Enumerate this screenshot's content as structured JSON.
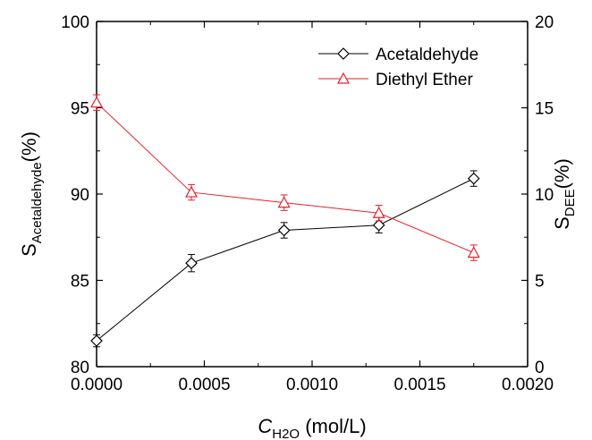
{
  "chart_data": {
    "type": "line",
    "title": "",
    "xlabel": {
      "main": "C",
      "sub": "H2O",
      "unit": " (mol/L)"
    },
    "ylabel_left": {
      "main": "S",
      "sub": "Acetaldehyde",
      "unit": "(%)"
    },
    "ylabel_right": {
      "main": "S",
      "sub": "DEE",
      "unit": "(%)"
    },
    "xlim": [
      0.0,
      0.002
    ],
    "ylim_left": [
      80,
      100
    ],
    "ylim_right": [
      0,
      20
    ],
    "x_ticks": [
      "0.0000",
      "0.0005",
      "0.0010",
      "0.0015",
      "0.0020"
    ],
    "y_left_ticks": [
      "80",
      "85",
      "90",
      "95",
      "100"
    ],
    "y_right_ticks": [
      "0",
      "5",
      "10",
      "15",
      "20"
    ],
    "legend_position": "top-right",
    "grid": false,
    "series": [
      {
        "name": "Acetaldehyde",
        "axis": "left",
        "marker": "diamond",
        "color": "#000000",
        "x": [
          0.0,
          0.00044,
          0.00087,
          0.00131,
          0.00175
        ],
        "y": [
          81.5,
          86.0,
          87.9,
          88.2,
          90.9
        ],
        "err": [
          0.35,
          0.5,
          0.45,
          0.45,
          0.45
        ]
      },
      {
        "name": "Diethyl Ether",
        "axis": "right",
        "marker": "triangle",
        "color": "#e8202a",
        "x": [
          0.0,
          0.00044,
          0.00087,
          0.00131,
          0.00175
        ],
        "y": [
          15.3,
          10.1,
          9.5,
          8.9,
          6.6
        ],
        "err": [
          0.45,
          0.45,
          0.45,
          0.45,
          0.45
        ]
      }
    ]
  }
}
